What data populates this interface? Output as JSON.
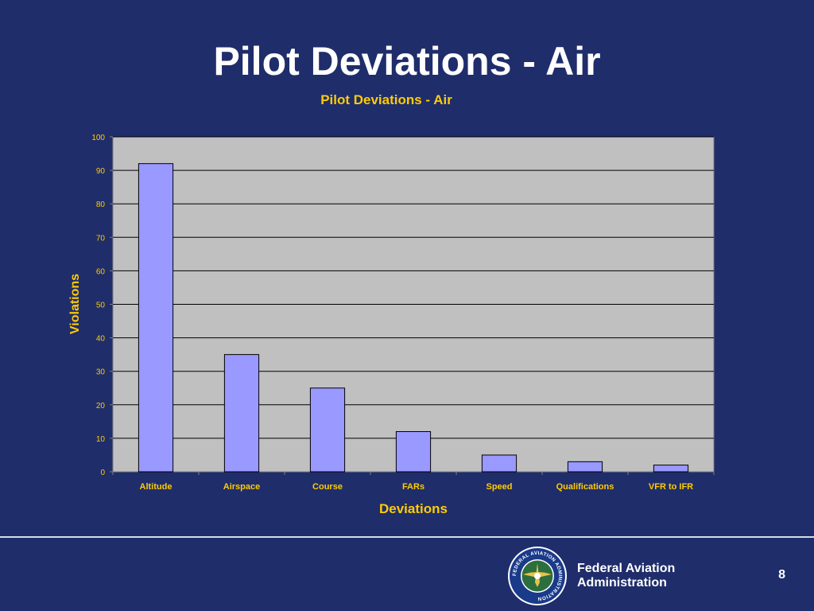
{
  "slide": {
    "title": "Pilot Deviations - Air",
    "page_number": "8"
  },
  "footer": {
    "agency_line1": "Federal Aviation",
    "agency_line2": "Administration",
    "seal_text": "FEDERAL AVIATION ADMINISTRATION"
  },
  "chart_data": {
    "type": "bar",
    "title": "Pilot Deviations - Air",
    "xlabel": "Deviations",
    "ylabel": "Violations",
    "categories": [
      "Altitude",
      "Airspace",
      "Course",
      "FARs",
      "Speed",
      "Qualifications",
      "VFR to IFR"
    ],
    "values": [
      92,
      35,
      25,
      12,
      5,
      3,
      2
    ],
    "ylim": [
      0,
      100
    ],
    "yticks": [
      0,
      10,
      20,
      30,
      40,
      50,
      60,
      70,
      80,
      90,
      100
    ],
    "grid": true,
    "legend": "none",
    "colors": {
      "bar": "#9999ff",
      "plot_background": "#c0c0c0",
      "text": "#ffcc00"
    }
  }
}
